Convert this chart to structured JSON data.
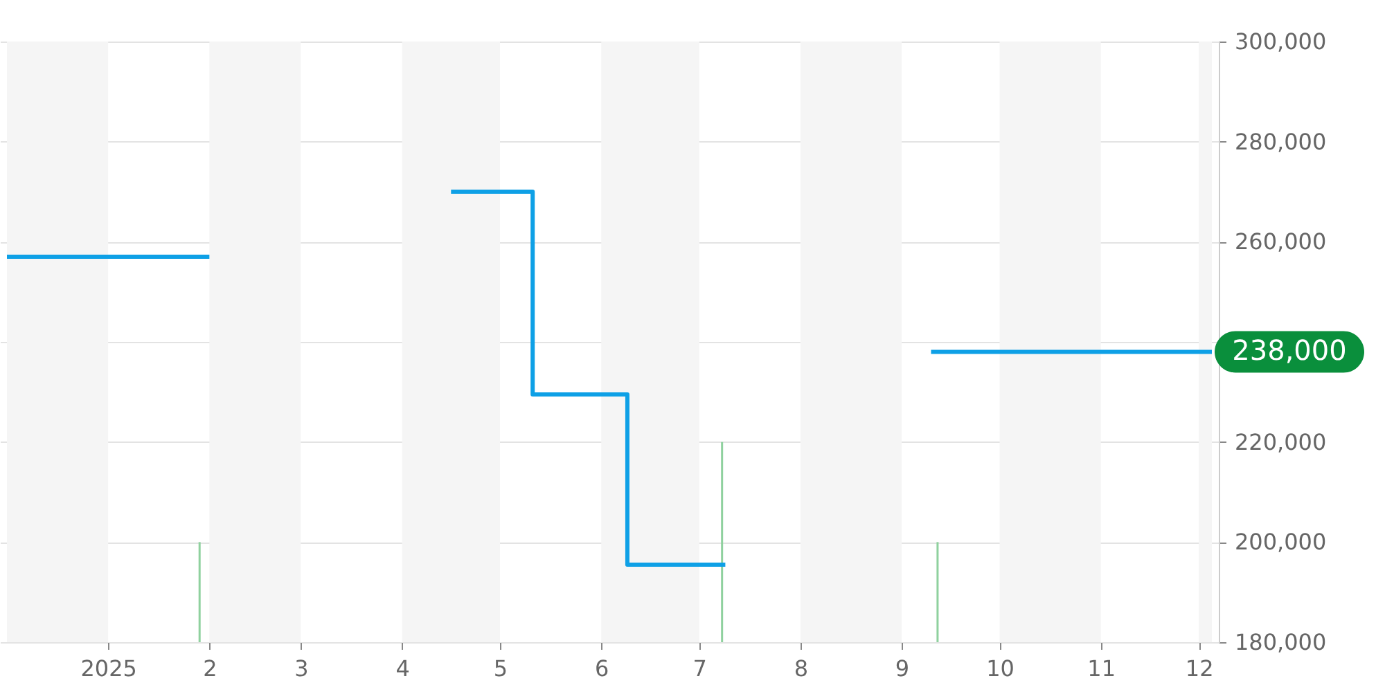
{
  "chart_data": {
    "type": "step",
    "xlim": [
      "2024-12-01",
      "2025-12-05"
    ],
    "xticks": [
      {
        "value": "2025-01-01",
        "label": "2025"
      },
      {
        "value": "2025-02-01",
        "label": "2"
      },
      {
        "value": "2025-03-01",
        "label": "3"
      },
      {
        "value": "2025-04-01",
        "label": "4"
      },
      {
        "value": "2025-05-01",
        "label": "5"
      },
      {
        "value": "2025-06-01",
        "label": "6"
      },
      {
        "value": "2025-07-01",
        "label": "7"
      },
      {
        "value": "2025-08-01",
        "label": "8"
      },
      {
        "value": "2025-09-01",
        "label": "9"
      },
      {
        "value": "2025-10-01",
        "label": "10"
      },
      {
        "value": "2025-11-01",
        "label": "11"
      },
      {
        "value": "2025-12-01",
        "label": "12"
      }
    ],
    "ylim": [
      180000,
      300000
    ],
    "yticks": [
      {
        "value": 180000,
        "label": "180,000"
      },
      {
        "value": 200000,
        "label": "200,000"
      },
      {
        "value": 220000,
        "label": "220,000"
      },
      {
        "value": 240000,
        "label": null
      },
      {
        "value": 260000,
        "label": "260,000"
      },
      {
        "value": 280000,
        "label": "280,000"
      },
      {
        "value": 300000,
        "label": "300,000"
      }
    ],
    "grid": "y",
    "marker": "none",
    "line_style": "solid",
    "series": [
      {
        "color": "#0ea0e6",
        "x": [
          "2024-12-01",
          "2025-02-01",
          "2025-03-01",
          "2025-04-16",
          "2025-05-11",
          "2025-06-09",
          "2025-07-09",
          "2025-08-01",
          "2025-09-10",
          "2025-12-05"
        ],
        "values": [
          257000,
          257000,
          null,
          270000,
          229500,
          195500,
          195500,
          null,
          238000,
          238000
        ]
      },
      {
        "type": "bar",
        "color": "#8fd19e",
        "x": [
          "2025-01-29",
          "2025-07-08",
          "2025-09-12"
        ],
        "values": [
          200000,
          220000,
          200000
        ]
      }
    ],
    "bands": [
      {
        "axis": "x",
        "from": "2024-12-01",
        "to": "2025-01-01",
        "color": "#f5f5f5"
      },
      {
        "axis": "x",
        "from": "2025-02-01",
        "to": "2025-03-01",
        "color": "#f5f5f5"
      },
      {
        "axis": "x",
        "from": "2025-04-01",
        "to": "2025-05-01",
        "color": "#f5f5f5"
      },
      {
        "axis": "x",
        "from": "2025-06-01",
        "to": "2025-07-01",
        "color": "#f5f5f5"
      },
      {
        "axis": "x",
        "from": "2025-08-01",
        "to": "2025-09-01",
        "color": "#f5f5f5"
      },
      {
        "axis": "x",
        "from": "2025-10-01",
        "to": "2025-11-01",
        "color": "#f5f5f5"
      },
      {
        "axis": "x",
        "from": "2025-12-01",
        "to": "2025-12-05",
        "color": "#f5f5f5"
      }
    ],
    "annotations": [
      {
        "text": "238,000",
        "x": "2025-12-05",
        "y": 238000
      }
    ]
  }
}
